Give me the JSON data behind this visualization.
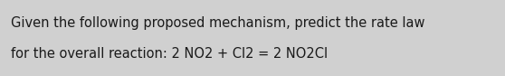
{
  "line1": "Given the following proposed mechanism, predict the rate law",
  "line2": "for the overall reaction: 2 NO2 + Cl2 = 2 NO2Cl",
  "background_color": "#d0d0d0",
  "text_color": "#1a1a1a",
  "font_size": 10.5,
  "fig_width": 5.58,
  "fig_height": 0.84,
  "dpi": 100
}
